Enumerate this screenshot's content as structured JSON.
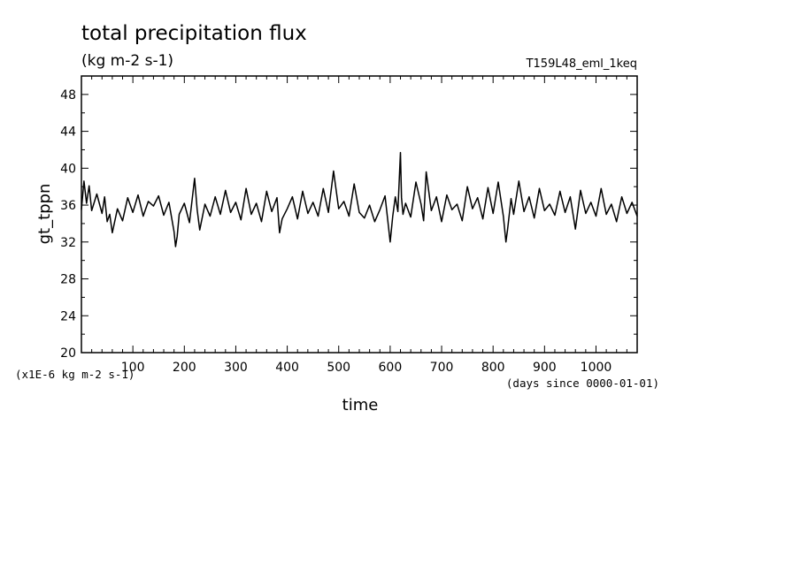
{
  "chart_data": {
    "type": "line",
    "title": "total precipitation flux",
    "subtitle": "(kg m-2 s-1)",
    "run_label": "T159L48_eml_1keq",
    "xlabel": "time",
    "x_unit_label": "(days since 0000-01-01)",
    "ylabel": "gt_tppn",
    "y_unit_label": "(x1E-6 kg m-2 s-1)",
    "xlim": [
      0,
      1080
    ],
    "ylim": [
      20,
      50
    ],
    "x_major_ticks": [
      100,
      200,
      300,
      400,
      500,
      600,
      700,
      800,
      900,
      1000
    ],
    "y_major_ticks": [
      20,
      24,
      28,
      32,
      36,
      40,
      44,
      48
    ],
    "grid": false,
    "line_color": "#000000",
    "series": [
      {
        "x": [
          0,
          5,
          10,
          15,
          20,
          30,
          40,
          45,
          50,
          55,
          60,
          70,
          80,
          90,
          100,
          110,
          120,
          130,
          140,
          150,
          160,
          170,
          180,
          183,
          186,
          190,
          200,
          210,
          220,
          225,
          230,
          240,
          250,
          260,
          270,
          280,
          290,
          300,
          310,
          320,
          330,
          340,
          350,
          360,
          370,
          380,
          385,
          390,
          400,
          410,
          420,
          430,
          440,
          450,
          460,
          470,
          480,
          490,
          500,
          510,
          520,
          530,
          540,
          550,
          560,
          570,
          580,
          590,
          600,
          605,
          610,
          615,
          620,
          622,
          625,
          630,
          640,
          650,
          660,
          665,
          670,
          680,
          690,
          700,
          710,
          720,
          730,
          740,
          750,
          760,
          770,
          780,
          790,
          800,
          810,
          820,
          825,
          828,
          835,
          840,
          850,
          860,
          870,
          880,
          890,
          900,
          910,
          920,
          930,
          940,
          950,
          960,
          970,
          980,
          990,
          1000,
          1010,
          1020,
          1030,
          1040,
          1050,
          1060,
          1070,
          1080
        ],
        "y": [
          35.5,
          38.6,
          36.2,
          38.1,
          35.4,
          37.2,
          35.1,
          36.9,
          34.2,
          35.0,
          33.0,
          35.6,
          34.3,
          36.8,
          35.2,
          37.1,
          34.8,
          36.4,
          35.9,
          37.0,
          34.9,
          36.3,
          33.1,
          31.5,
          32.6,
          35.0,
          36.2,
          34.1,
          38.9,
          35.5,
          33.3,
          36.1,
          34.8,
          36.9,
          35.0,
          37.6,
          35.2,
          36.3,
          34.4,
          37.8,
          35.0,
          36.2,
          34.2,
          37.5,
          35.3,
          36.8,
          33.0,
          34.5,
          35.6,
          36.9,
          34.5,
          37.5,
          35.1,
          36.3,
          34.8,
          37.8,
          35.2,
          39.7,
          35.6,
          36.4,
          34.8,
          38.3,
          35.2,
          34.6,
          36.0,
          34.2,
          35.5,
          37.0,
          32.0,
          34.8,
          36.9,
          35.3,
          41.7,
          36.8,
          35.0,
          36.2,
          34.7,
          38.5,
          36.1,
          34.3,
          39.6,
          35.4,
          36.9,
          34.2,
          37.1,
          35.5,
          36.1,
          34.3,
          38.0,
          35.6,
          36.8,
          34.5,
          37.9,
          35.1,
          38.5,
          34.8,
          32.0,
          33.3,
          36.7,
          35.0,
          38.6,
          35.3,
          36.9,
          34.6,
          37.8,
          35.4,
          36.1,
          34.9,
          37.5,
          35.2,
          36.9,
          33.4,
          37.6,
          35.1,
          36.3,
          34.8,
          37.8,
          35.0,
          36.1,
          34.2,
          36.9,
          35.1,
          36.3,
          34.8
        ]
      }
    ]
  }
}
